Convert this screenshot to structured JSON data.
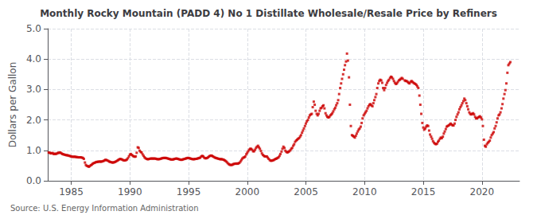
{
  "chart_data": {
    "type": "scatter",
    "title": "Monthly Rocky Mountain (PADD 4) No 1 Distillate Wholesale/Resale Price by Refiners",
    "ylabel": "Dollars per Gallon",
    "annotation": "Source: U.S. Energy Information Administration",
    "color": "#cc0000",
    "marker": "square",
    "grid": true,
    "xlim": [
      1983.0,
      2023.2
    ],
    "ylim": [
      0.0,
      5.0
    ],
    "xticks": [
      1985,
      1990,
      1995,
      2000,
      2005,
      2010,
      2015,
      2020
    ],
    "yticks": [
      {
        "value": 0.0,
        "label": "0.0"
      },
      {
        "value": 1.0,
        "label": "1.0"
      },
      {
        "value": 2.0,
        "label": "2.0"
      },
      {
        "value": 3.0,
        "label": "3.0"
      },
      {
        "value": 4.0,
        "label": "4.0"
      },
      {
        "value": 5.0,
        "label": "5.0"
      }
    ],
    "x": [
      1983.08,
      1983.17,
      1983.25,
      1983.33,
      1983.42,
      1983.5,
      1983.58,
      1983.67,
      1983.75,
      1983.83,
      1983.92,
      1984.0,
      1984.08,
      1984.17,
      1984.25,
      1984.33,
      1984.42,
      1984.5,
      1984.58,
      1984.67,
      1984.75,
      1984.83,
      1984.92,
      1985.0,
      1985.08,
      1985.17,
      1985.25,
      1985.33,
      1985.42,
      1985.5,
      1985.58,
      1985.67,
      1985.75,
      1985.83,
      1985.92,
      1986.0,
      1986.08,
      1986.17,
      1986.25,
      1986.33,
      1986.42,
      1986.5,
      1986.58,
      1986.67,
      1986.75,
      1986.83,
      1986.92,
      1987.0,
      1987.08,
      1987.17,
      1987.25,
      1987.33,
      1987.42,
      1987.5,
      1987.58,
      1987.67,
      1987.75,
      1987.83,
      1987.92,
      1988.0,
      1988.08,
      1988.17,
      1988.25,
      1988.33,
      1988.42,
      1988.5,
      1988.58,
      1988.67,
      1988.75,
      1988.83,
      1988.92,
      1989.0,
      1989.08,
      1989.17,
      1989.25,
      1989.33,
      1989.42,
      1989.5,
      1989.58,
      1989.67,
      1989.75,
      1989.83,
      1989.92,
      1990.0,
      1990.08,
      1990.17,
      1990.25,
      1990.33,
      1990.42,
      1990.5,
      1990.58,
      1990.67,
      1990.75,
      1990.83,
      1990.92,
      1991.0,
      1991.08,
      1991.17,
      1991.25,
      1991.33,
      1991.42,
      1991.5,
      1991.58,
      1991.67,
      1991.75,
      1991.83,
      1991.92,
      1992.0,
      1992.08,
      1992.17,
      1992.25,
      1992.33,
      1992.42,
      1992.5,
      1992.58,
      1992.67,
      1992.75,
      1992.83,
      1992.92,
      1993.0,
      1993.08,
      1993.17,
      1993.25,
      1993.33,
      1993.42,
      1993.5,
      1993.58,
      1993.67,
      1993.75,
      1993.83,
      1993.92,
      1994.0,
      1994.08,
      1994.17,
      1994.25,
      1994.33,
      1994.42,
      1994.5,
      1994.58,
      1994.67,
      1994.75,
      1994.83,
      1994.92,
      1995.0,
      1995.08,
      1995.17,
      1995.25,
      1995.33,
      1995.42,
      1995.5,
      1995.58,
      1995.67,
      1995.75,
      1995.83,
      1995.92,
      1996.0,
      1996.08,
      1996.17,
      1996.25,
      1996.33,
      1996.42,
      1996.5,
      1996.58,
      1996.67,
      1996.75,
      1996.83,
      1996.92,
      1997.0,
      1997.08,
      1997.17,
      1997.25,
      1997.33,
      1997.42,
      1997.5,
      1997.58,
      1997.67,
      1997.75,
      1997.83,
      1997.92,
      1998.0,
      1998.08,
      1998.17,
      1998.25,
      1998.33,
      1998.42,
      1998.5,
      1998.58,
      1998.67,
      1998.75,
      1998.83,
      1998.92,
      1999.0,
      1999.08,
      1999.17,
      1999.25,
      1999.33,
      1999.42,
      1999.5,
      1999.58,
      1999.67,
      1999.75,
      1999.83,
      1999.92,
      2000.0,
      2000.08,
      2000.17,
      2000.25,
      2000.33,
      2000.42,
      2000.5,
      2000.58,
      2000.67,
      2000.75,
      2000.83,
      2000.92,
      2001.0,
      2001.08,
      2001.17,
      2001.25,
      2001.33,
      2001.42,
      2001.5,
      2001.58,
      2001.67,
      2001.75,
      2001.83,
      2001.92,
      2002.0,
      2002.08,
      2002.17,
      2002.25,
      2002.33,
      2002.42,
      2002.5,
      2002.58,
      2002.67,
      2002.75,
      2002.83,
      2002.92,
      2003.0,
      2003.08,
      2003.17,
      2003.25,
      2003.33,
      2003.42,
      2003.5,
      2003.58,
      2003.67,
      2003.75,
      2003.83,
      2003.92,
      2004.0,
      2004.08,
      2004.17,
      2004.25,
      2004.33,
      2004.42,
      2004.5,
      2004.58,
      2004.67,
      2004.75,
      2004.83,
      2004.92,
      2005.0,
      2005.08,
      2005.17,
      2005.25,
      2005.33,
      2005.42,
      2005.5,
      2005.58,
      2005.67,
      2005.75,
      2005.83,
      2005.92,
      2006.0,
      2006.08,
      2006.17,
      2006.25,
      2006.33,
      2006.42,
      2006.5,
      2006.58,
      2006.67,
      2006.75,
      2006.83,
      2006.92,
      2007.0,
      2007.08,
      2007.17,
      2007.25,
      2007.33,
      2007.42,
      2007.5,
      2007.58,
      2007.67,
      2007.75,
      2007.83,
      2007.92,
      2008.0,
      2008.08,
      2008.17,
      2008.25,
      2008.33,
      2008.42,
      2008.5,
      2008.58,
      2008.67,
      2008.75,
      2008.83,
      2008.92,
      2009.0,
      2009.08,
      2009.17,
      2009.25,
      2009.33,
      2009.42,
      2009.5,
      2009.58,
      2009.67,
      2009.75,
      2009.83,
      2009.92,
      2010.0,
      2010.08,
      2010.17,
      2010.25,
      2010.33,
      2010.42,
      2010.5,
      2010.58,
      2010.67,
      2010.75,
      2010.83,
      2010.92,
      2011.0,
      2011.08,
      2011.17,
      2011.25,
      2011.33,
      2011.42,
      2011.5,
      2011.58,
      2011.67,
      2011.75,
      2011.83,
      2011.92,
      2012.0,
      2012.08,
      2012.17,
      2012.25,
      2012.33,
      2012.42,
      2012.5,
      2012.58,
      2012.67,
      2012.75,
      2012.83,
      2012.92,
      2013.0,
      2013.08,
      2013.17,
      2013.25,
      2013.42,
      2013.5,
      2013.58,
      2013.67,
      2013.75,
      2013.83,
      2013.92,
      2014.0,
      2014.08,
      2014.17,
      2014.25,
      2014.33,
      2014.42,
      2014.5,
      2014.58,
      2014.67,
      2014.75,
      2014.83,
      2014.92,
      2015.0,
      2015.08,
      2015.17,
      2015.25,
      2015.33,
      2015.42,
      2015.5,
      2015.58,
      2015.67,
      2015.75,
      2015.83,
      2015.92,
      2016.0,
      2016.08,
      2016.17,
      2016.25,
      2016.33,
      2016.42,
      2016.5,
      2016.58,
      2016.67,
      2016.75,
      2016.83,
      2016.92,
      2017.0,
      2017.08,
      2017.17,
      2017.25,
      2017.33,
      2017.42,
      2017.5,
      2017.58,
      2017.67,
      2017.75,
      2017.83,
      2017.92,
      2018.0,
      2018.08,
      2018.17,
      2018.25,
      2018.33,
      2018.42,
      2018.5,
      2018.58,
      2018.67,
      2018.75,
      2018.83,
      2018.92,
      2019.0,
      2019.08,
      2019.17,
      2019.25,
      2019.33,
      2019.42,
      2019.5,
      2019.58,
      2019.67,
      2019.75,
      2019.83,
      2019.92,
      2020.0,
      2020.08,
      2020.17,
      2020.25,
      2020.33,
      2020.42,
      2020.5,
      2020.58,
      2020.67,
      2020.75,
      2020.83,
      2020.92,
      2021.0,
      2021.08,
      2021.17,
      2021.25,
      2021.33,
      2021.42,
      2021.5,
      2021.58,
      2021.67,
      2021.75,
      2021.83,
      2021.92,
      2022.0,
      2022.08,
      2022.17,
      2022.25,
      2022.33,
      2022.42
    ],
    "values": [
      0.93,
      0.92,
      0.9,
      0.91,
      0.91,
      0.88,
      0.89,
      0.88,
      0.89,
      0.91,
      0.92,
      0.92,
      0.93,
      0.9,
      0.88,
      0.87,
      0.86,
      0.85,
      0.84,
      0.84,
      0.83,
      0.82,
      0.81,
      0.8,
      0.79,
      0.79,
      0.79,
      0.79,
      0.78,
      0.78,
      0.77,
      0.77,
      0.77,
      0.77,
      0.76,
      0.75,
      0.72,
      0.6,
      0.52,
      0.49,
      0.48,
      0.46,
      0.48,
      0.51,
      0.53,
      0.56,
      0.58,
      0.59,
      0.61,
      0.62,
      0.62,
      0.63,
      0.63,
      0.63,
      0.63,
      0.64,
      0.65,
      0.67,
      0.69,
      0.68,
      0.67,
      0.65,
      0.63,
      0.62,
      0.61,
      0.6,
      0.6,
      0.61,
      0.62,
      0.64,
      0.66,
      0.68,
      0.7,
      0.72,
      0.71,
      0.7,
      0.68,
      0.67,
      0.67,
      0.68,
      0.7,
      0.74,
      0.8,
      0.86,
      0.88,
      0.85,
      0.82,
      0.8,
      0.79,
      0.8,
      0.92,
      1.1,
      1.08,
      0.99,
      0.95,
      0.93,
      0.87,
      0.82,
      0.77,
      0.74,
      0.72,
      0.71,
      0.71,
      0.72,
      0.73,
      0.73,
      0.73,
      0.73,
      0.73,
      0.73,
      0.72,
      0.71,
      0.71,
      0.71,
      0.72,
      0.73,
      0.74,
      0.75,
      0.75,
      0.75,
      0.75,
      0.74,
      0.73,
      0.72,
      0.71,
      0.7,
      0.7,
      0.7,
      0.71,
      0.72,
      0.73,
      0.73,
      0.72,
      0.71,
      0.7,
      0.69,
      0.69,
      0.7,
      0.71,
      0.72,
      0.73,
      0.74,
      0.75,
      0.75,
      0.74,
      0.73,
      0.72,
      0.71,
      0.71,
      0.71,
      0.72,
      0.72,
      0.73,
      0.74,
      0.75,
      0.76,
      0.8,
      0.82,
      0.8,
      0.76,
      0.74,
      0.74,
      0.75,
      0.77,
      0.8,
      0.82,
      0.83,
      0.82,
      0.8,
      0.78,
      0.76,
      0.75,
      0.74,
      0.73,
      0.72,
      0.71,
      0.71,
      0.71,
      0.7,
      0.69,
      0.67,
      0.65,
      0.62,
      0.58,
      0.55,
      0.53,
      0.52,
      0.52,
      0.53,
      0.55,
      0.56,
      0.56,
      0.57,
      0.56,
      0.57,
      0.59,
      0.63,
      0.68,
      0.73,
      0.76,
      0.77,
      0.8,
      0.87,
      0.92,
      0.97,
      1.02,
      1.05,
      1.05,
      1.02,
      0.97,
      0.97,
      1.02,
      1.08,
      1.12,
      1.15,
      1.1,
      1.05,
      0.98,
      0.9,
      0.85,
      0.82,
      0.8,
      0.8,
      0.8,
      0.76,
      0.72,
      0.68,
      0.66,
      0.66,
      0.67,
      0.68,
      0.7,
      0.72,
      0.73,
      0.75,
      0.77,
      0.82,
      0.88,
      0.96,
      1.05,
      1.12,
      1.08,
      0.99,
      0.95,
      0.93,
      0.95,
      0.97,
      1.0,
      1.05,
      1.08,
      1.15,
      1.2,
      1.28,
      1.32,
      1.35,
      1.38,
      1.4,
      1.45,
      1.5,
      1.58,
      1.65,
      1.72,
      1.8,
      1.88,
      1.95,
      2.0,
      2.08,
      2.15,
      2.18,
      2.2,
      2.42,
      2.6,
      2.5,
      2.3,
      2.2,
      2.15,
      2.2,
      2.3,
      2.38,
      2.4,
      2.45,
      2.48,
      2.38,
      2.22,
      2.15,
      2.1,
      2.08,
      2.1,
      2.15,
      2.18,
      2.22,
      2.28,
      2.35,
      2.4,
      2.48,
      2.55,
      2.65,
      2.85,
      3.05,
      3.2,
      3.35,
      3.5,
      3.65,
      3.8,
      3.92,
      4.18,
      3.95,
      3.4,
      2.5,
      1.8,
      1.5,
      1.48,
      1.45,
      1.42,
      1.48,
      1.55,
      1.62,
      1.68,
      1.72,
      1.78,
      1.9,
      2.05,
      2.15,
      2.2,
      2.25,
      2.3,
      2.38,
      2.45,
      2.5,
      2.52,
      2.48,
      2.45,
      2.55,
      2.65,
      2.75,
      2.85,
      3.05,
      3.2,
      3.28,
      3.32,
      3.3,
      3.22,
      3.05,
      2.98,
      3.05,
      3.15,
      3.22,
      3.28,
      3.32,
      3.38,
      3.42,
      3.4,
      3.35,
      3.28,
      3.22,
      3.18,
      3.2,
      3.25,
      3.3,
      3.32,
      3.35,
      3.38,
      3.35,
      3.3,
      3.28,
      3.28,
      3.25,
      3.22,
      3.2,
      3.25,
      3.28,
      3.25,
      3.22,
      3.2,
      3.18,
      3.15,
      3.1,
      3.05,
      2.8,
      2.5,
      2.2,
      1.9,
      1.75,
      1.68,
      1.72,
      1.78,
      1.82,
      1.8,
      1.65,
      1.52,
      1.45,
      1.38,
      1.3,
      1.25,
      1.22,
      1.2,
      1.22,
      1.28,
      1.32,
      1.38,
      1.42,
      1.4,
      1.45,
      1.55,
      1.62,
      1.7,
      1.78,
      1.8,
      1.82,
      1.85,
      1.88,
      1.85,
      1.82,
      1.82,
      1.88,
      2.0,
      2.1,
      2.18,
      2.25,
      2.35,
      2.42,
      2.48,
      2.55,
      2.62,
      2.7,
      2.65,
      2.55,
      2.45,
      2.35,
      2.25,
      2.2,
      2.18,
      2.2,
      2.22,
      2.18,
      2.1,
      2.05,
      2.05,
      2.08,
      2.1,
      2.12,
      2.08,
      2.02,
      1.8,
      1.35,
      1.15,
      1.12,
      1.2,
      1.25,
      1.28,
      1.32,
      1.42,
      1.5,
      1.55,
      1.6,
      1.72,
      1.8,
      1.92,
      2.05,
      2.15,
      2.18,
      2.25,
      2.38,
      2.52,
      2.7,
      2.85,
      2.98,
      3.2,
      3.55,
      3.8,
      3.85,
      3.9
    ]
  }
}
